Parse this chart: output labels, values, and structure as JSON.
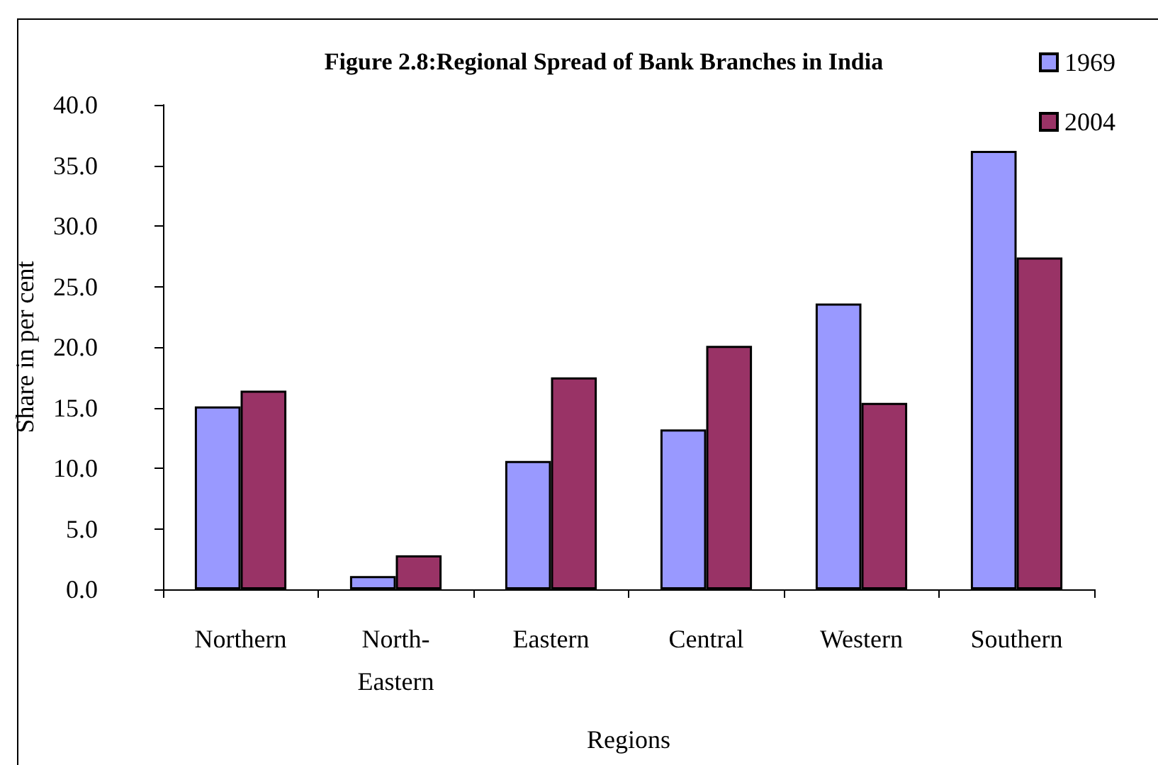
{
  "chart_data": {
    "type": "bar",
    "title": "Figure 2.8:Regional Spread of Bank Branches in India",
    "xlabel": "Regions",
    "ylabel": "Share in per cent",
    "categories": [
      "Northern",
      "North-Eastern",
      "Eastern",
      "Central",
      "Western",
      "Southern"
    ],
    "series": [
      {
        "name": "1969",
        "color": "#9999ff",
        "values": [
          15.1,
          1.1,
          10.6,
          13.2,
          23.6,
          36.2
        ]
      },
      {
        "name": "2004",
        "color": "#993366",
        "values": [
          16.4,
          2.8,
          17.5,
          20.1,
          15.4,
          27.4
        ]
      }
    ],
    "ylim": [
      0,
      40
    ],
    "yticks": [
      {
        "value": 0,
        "label": "0.0"
      },
      {
        "value": 5,
        "label": "5.0"
      },
      {
        "value": 10,
        "label": "10.0"
      },
      {
        "value": 15,
        "label": "15.0"
      },
      {
        "value": 20,
        "label": "20.0"
      },
      {
        "value": 25,
        "label": "25.0"
      },
      {
        "value": 30,
        "label": "30.0"
      },
      {
        "value": 35,
        "label": "35.0"
      },
      {
        "value": 40,
        "label": "40.0"
      }
    ],
    "grid": false,
    "legend": "top right"
  }
}
